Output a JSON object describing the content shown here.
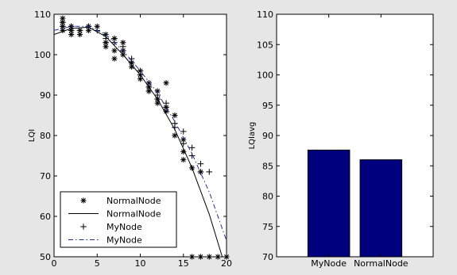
{
  "chart_data": [
    {
      "type": "scatter",
      "xlabel": "",
      "ylabel": "LQI",
      "xlim": [
        0,
        20
      ],
      "ylim": [
        50,
        110
      ],
      "xticks": [
        0,
        5,
        10,
        15,
        20
      ],
      "yticks": [
        50,
        60,
        70,
        80,
        90,
        100,
        110
      ],
      "legend_position": "bottom-left",
      "series": [
        {
          "name": "NormalNode",
          "style": "star-markers",
          "color": "#000000",
          "points": [
            [
              1,
              109
            ],
            [
              1,
              108
            ],
            [
              1,
              107
            ],
            [
              1,
              106
            ],
            [
              2,
              107
            ],
            [
              2,
              106
            ],
            [
              2,
              105
            ],
            [
              3,
              106
            ],
            [
              3,
              105
            ],
            [
              4,
              107
            ],
            [
              4,
              106
            ],
            [
              5,
              107
            ],
            [
              6,
              105
            ],
            [
              6,
              103
            ],
            [
              6,
              102
            ],
            [
              7,
              104
            ],
            [
              7,
              101
            ],
            [
              7,
              99
            ],
            [
              8,
              103
            ],
            [
              8,
              101
            ],
            [
              8,
              100
            ],
            [
              9,
              98
            ],
            [
              9,
              97
            ],
            [
              10,
              96
            ],
            [
              10,
              95
            ],
            [
              10,
              94
            ],
            [
              11,
              93
            ],
            [
              11,
              92
            ],
            [
              11,
              91
            ],
            [
              12,
              91
            ],
            [
              12,
              89
            ],
            [
              12,
              88
            ],
            [
              13,
              93
            ],
            [
              13,
              87
            ],
            [
              13,
              86
            ],
            [
              14,
              85
            ],
            [
              14,
              80
            ],
            [
              15,
              79
            ],
            [
              15,
              76
            ],
            [
              15,
              74
            ],
            [
              16,
              72
            ],
            [
              16,
              50
            ],
            [
              17,
              71
            ],
            [
              17,
              50
            ],
            [
              18,
              50
            ],
            [
              19,
              50
            ],
            [
              20,
              50
            ]
          ]
        },
        {
          "name": "NormalNode",
          "style": "solid-line",
          "color": "#000000",
          "points": [
            [
              0,
              105
            ],
            [
              2,
              106.5
            ],
            [
              4,
              106.8
            ],
            [
              6,
              104.5
            ],
            [
              8,
              100
            ],
            [
              10,
              95
            ],
            [
              12,
              89
            ],
            [
              14,
              81.5
            ],
            [
              16,
              72
            ],
            [
              18,
              60.5
            ],
            [
              19.5,
              50
            ]
          ]
        },
        {
          "name": "MyNode",
          "style": "plus-markers",
          "color": "#000000",
          "points": [
            [
              1,
              108
            ],
            [
              1,
              107
            ],
            [
              2,
              107
            ],
            [
              2,
              106
            ],
            [
              3,
              106
            ],
            [
              4,
              107
            ],
            [
              5,
              106
            ],
            [
              6,
              104
            ],
            [
              6,
              103
            ],
            [
              7,
              104
            ],
            [
              7,
              103
            ],
            [
              8,
              102
            ],
            [
              8,
              101
            ],
            [
              9,
              99
            ],
            [
              9,
              98
            ],
            [
              10,
              96
            ],
            [
              10,
              95
            ],
            [
              11,
              92
            ],
            [
              11,
              91
            ],
            [
              12,
              90
            ],
            [
              12,
              89
            ],
            [
              13,
              88
            ],
            [
              13,
              87
            ],
            [
              14,
              83
            ],
            [
              14,
              82
            ],
            [
              15,
              81
            ],
            [
              15,
              78
            ],
            [
              16,
              77
            ],
            [
              16,
              75
            ],
            [
              17,
              73
            ],
            [
              17,
              71
            ],
            [
              18,
              71
            ]
          ]
        },
        {
          "name": "MyNode",
          "style": "dash-dot-line",
          "color": "#1f2d9c",
          "points": [
            [
              0,
              106
            ],
            [
              2,
              107
            ],
            [
              4,
              107
            ],
            [
              6,
              105
            ],
            [
              8,
              101
            ],
            [
              10,
              96
            ],
            [
              12,
              90.5
            ],
            [
              14,
              83.5
            ],
            [
              16,
              75.5
            ],
            [
              18,
              66
            ],
            [
              20,
              54
            ]
          ]
        }
      ]
    },
    {
      "type": "bar",
      "xlabel": "",
      "ylabel": "LQIavg",
      "categories": [
        "MyNode",
        "NormalNode"
      ],
      "values": [
        87.6,
        86
      ],
      "ylim": [
        70,
        110
      ],
      "yticks": [
        70,
        75,
        80,
        85,
        90,
        95,
        100,
        105,
        110
      ],
      "bar_color": "#00007f"
    }
  ]
}
